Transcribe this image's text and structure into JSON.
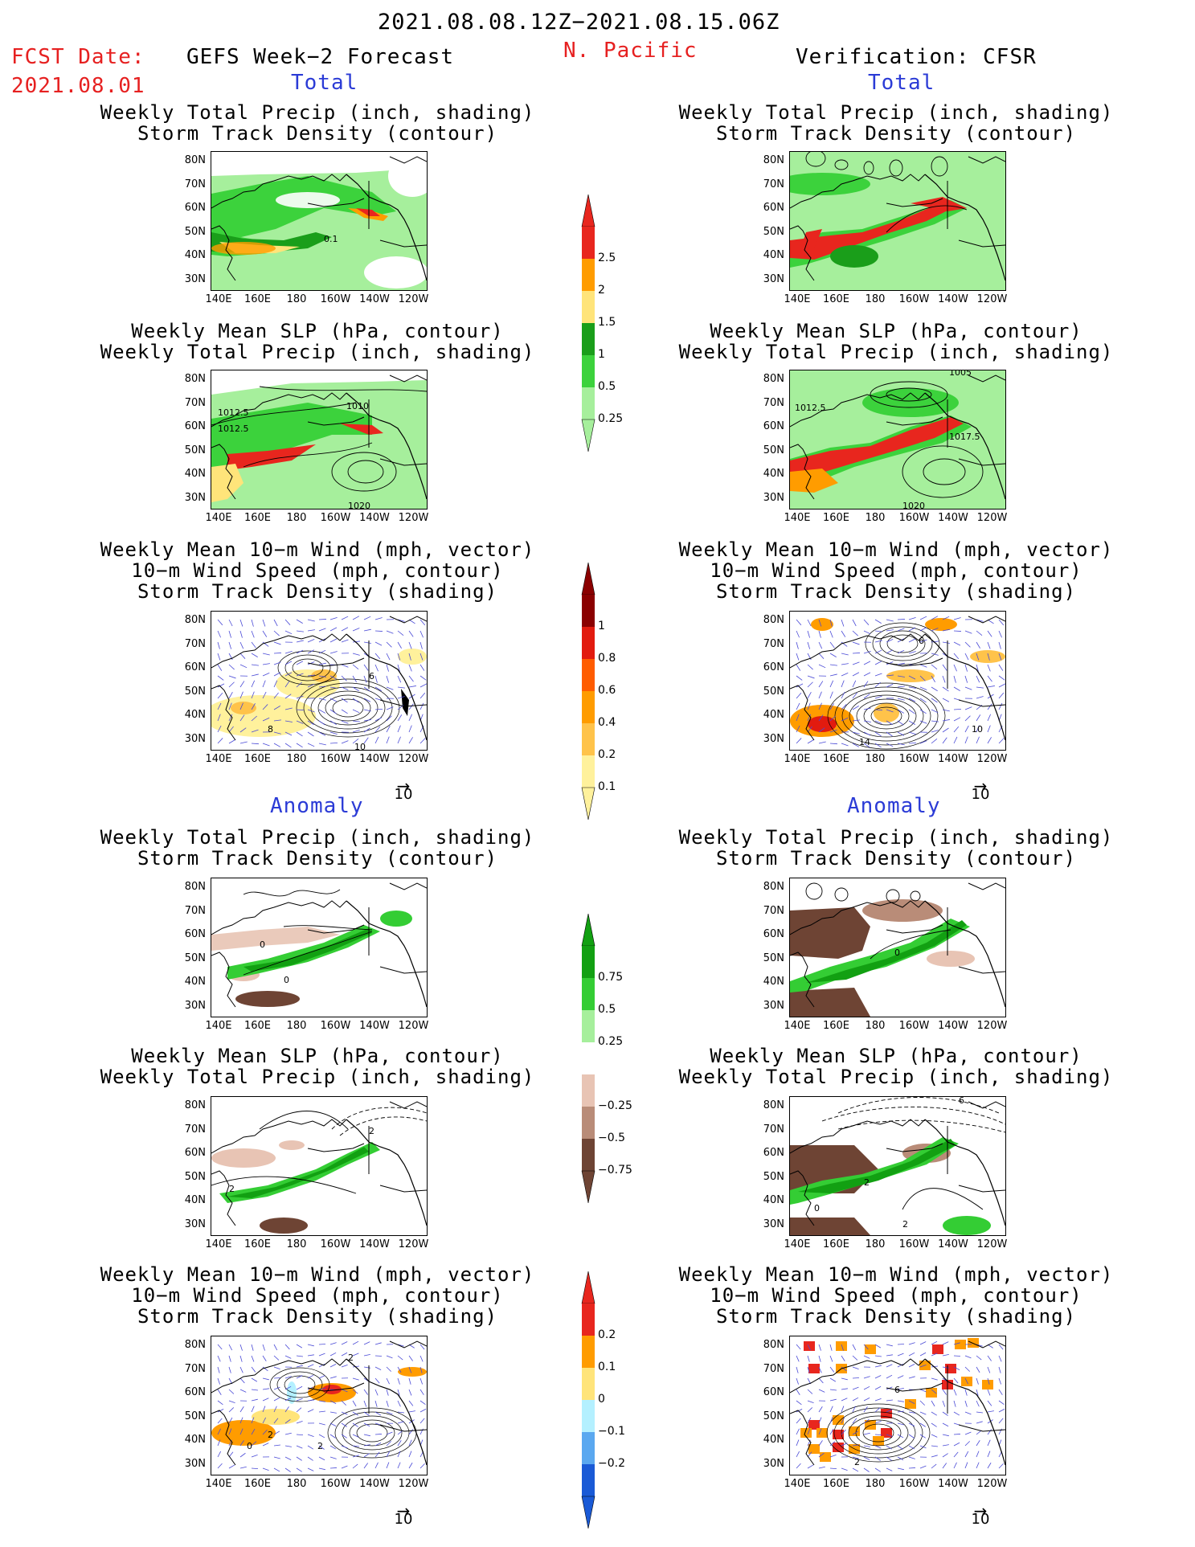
{
  "header": {
    "period": "2021.08.08.12Z−2021.08.15.06Z",
    "fcst_label": "FCST Date:",
    "fcst_date": "2021.08.01",
    "left_title": "GEFS Week−2 Forecast",
    "region": "N. Pacific",
    "right_title": "Verification: CFSR"
  },
  "section_labels": {
    "total": "Total",
    "anomaly": "Anomaly"
  },
  "captions": {
    "precip_track": [
      "Weekly Total Precip (inch, shading)",
      "Storm Track Density (contour)"
    ],
    "slp_precip": [
      "Weekly Mean SLP (hPa, contour)",
      "Weekly Total Precip (inch, shading)"
    ],
    "wind_track": [
      "Weekly Mean 10−m Wind (mph, vector)",
      "10−m Wind Speed (mph, contour)",
      "Storm Track Density (shading)"
    ]
  },
  "axes": {
    "lat_labels": [
      "80N",
      "70N",
      "60N",
      "50N",
      "40N",
      "30N"
    ],
    "lon_labels": [
      "140E",
      "160E",
      "180",
      "160W",
      "140W",
      "120W"
    ]
  },
  "vector_reference": "10",
  "colorbars": {
    "precip_total": {
      "labels": [
        "2.5",
        "2",
        "1.5",
        "1",
        "0.5",
        "0.25"
      ],
      "colors": [
        "#e8261e",
        "#ff9c00",
        "#ffe47a",
        "#1a9e1a",
        "#3cd23c",
        "#a6ef9c"
      ]
    },
    "track_total": {
      "labels": [
        "1",
        "0.8",
        "0.6",
        "0.4",
        "0.2",
        "0.1"
      ],
      "colors": [
        "#8b0000",
        "#e21b0f",
        "#ff5c00",
        "#ff9c00",
        "#ffc34a",
        "#fff19c"
      ]
    },
    "precip_anom": {
      "labels": [
        "0.75",
        "0.5",
        "0.25",
        "−0.25",
        "−0.5",
        "−0.75"
      ],
      "colors": [
        "#12a012",
        "#34cd34",
        "#a6ef9c",
        "#ffffff",
        "#e8c4b4",
        "#b98c78",
        "#6e4434"
      ]
    },
    "track_anom": {
      "labels": [
        "0.2",
        "0.1",
        "0",
        "−0.1",
        "−0.2"
      ],
      "colors": [
        "#e8261e",
        "#ff9c00",
        "#ffe47a",
        "#b4f0ff",
        "#5aa8f0",
        "#1a5ad6"
      ]
    }
  },
  "map_labels": {
    "l1": "0.1",
    "l2a": "1012.5",
    "l2b": "1012.5",
    "l2c": "1010",
    "l2d": "1020",
    "r2a": "1012.5",
    "r2b": "1017.5",
    "r2c": "1005",
    "r2d": "1020",
    "l3a": "8",
    "l3b": "10",
    "l3c": "6",
    "r3a": "10",
    "r3b": "14",
    "r3c": "6",
    "l4a": "0",
    "l4b": "0",
    "r4a": "0",
    "l5a": "2",
    "l5b": "2",
    "r5a": "6",
    "r5b": "2",
    "r5c": "0",
    "r5d": "2",
    "l6a": "2",
    "l6b": "2",
    "l6c": "0",
    "l6d": "2",
    "r6a": "6",
    "r6b": "2"
  }
}
